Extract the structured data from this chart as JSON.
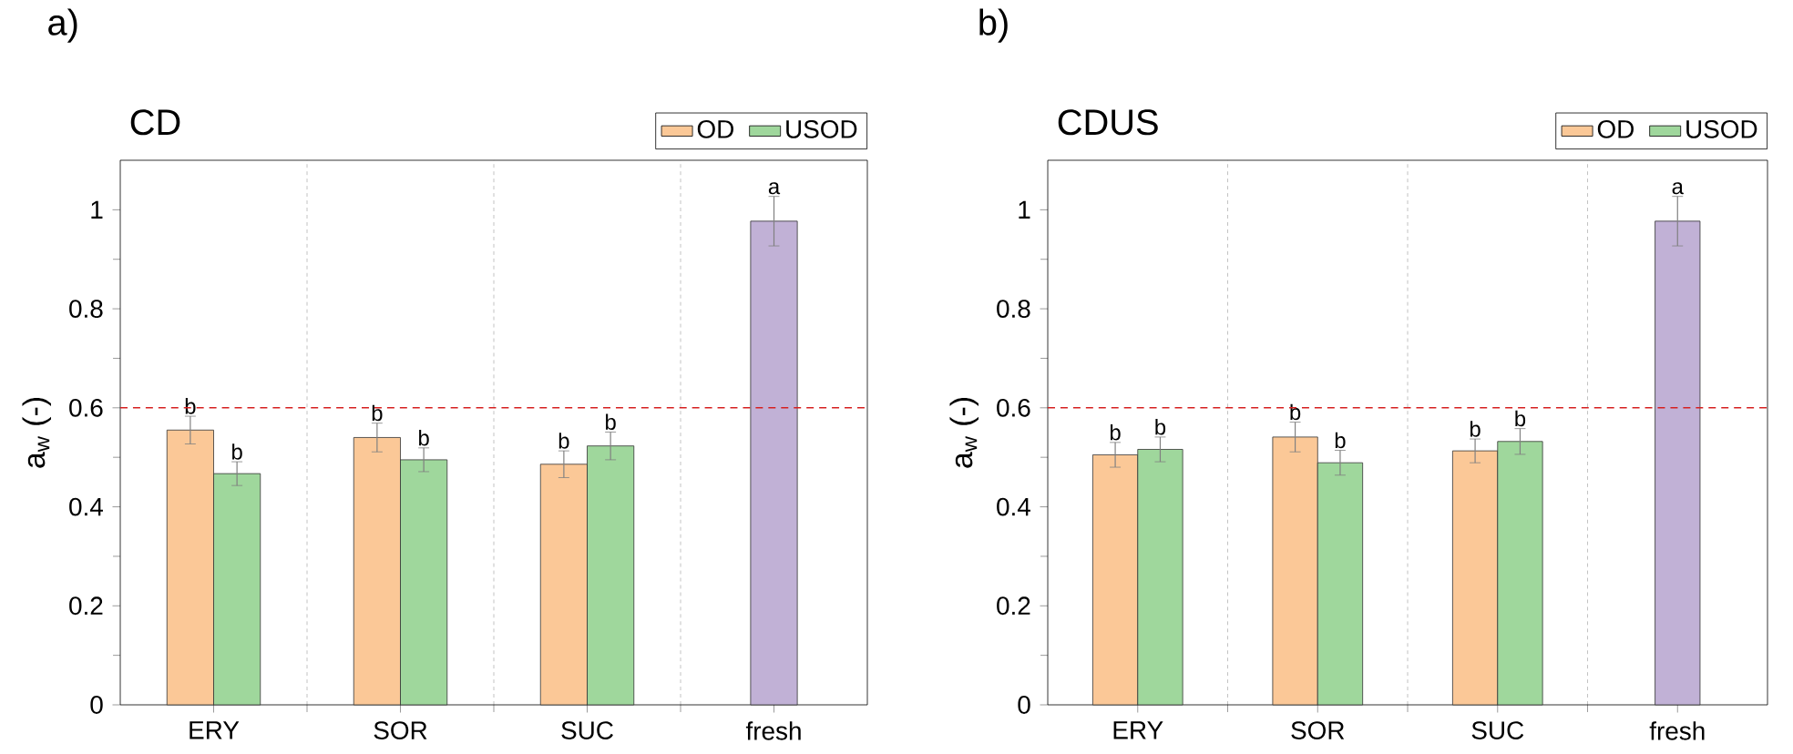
{
  "chart_data": [
    {
      "type": "bar",
      "title": "CD",
      "categories": [
        "ERY",
        "SOR",
        "SUC",
        "fresh"
      ],
      "ylabel": "a$_{w}$ (-)",
      "ylim": [
        0,
        1.1
      ],
      "yticks": [
        0,
        0.2,
        0.4,
        0.6,
        0.8,
        1
      ],
      "grid": "x",
      "legend": "top right",
      "ref_lines": [
        {
          "axis": "y",
          "value": 0.6,
          "color": "#d62020",
          "line_style": "dashed"
        }
      ],
      "annotations": [
        "a)"
      ],
      "series": [
        {
          "name": "OD",
          "color": "#fbc897",
          "values": [
            0.555,
            0.54,
            0.486,
            null
          ],
          "errors": [
            0.028,
            0.029,
            0.027,
            null
          ],
          "value_labels": [
            "b",
            "b",
            "b",
            null
          ]
        },
        {
          "name": "USOD",
          "color": "#9fd79c",
          "values": [
            0.467,
            0.495,
            0.523,
            null
          ],
          "errors": [
            0.024,
            0.024,
            0.028,
            null
          ],
          "value_labels": [
            "b",
            "b",
            "b",
            null
          ]
        },
        {
          "color": "#c1b1d6",
          "values": [
            null,
            null,
            null,
            0.977
          ],
          "errors": [
            null,
            null,
            null,
            0.05
          ],
          "value_labels": [
            null,
            null,
            null,
            "a"
          ]
        }
      ]
    },
    {
      "type": "bar",
      "title": "CDUS",
      "categories": [
        "ERY",
        "SOR",
        "SUC",
        "fresh"
      ],
      "ylabel": "a$_{w}$ (-)",
      "ylim": [
        0,
        1.1
      ],
      "yticks": [
        0,
        0.2,
        0.4,
        0.6,
        0.8,
        1
      ],
      "grid": "x",
      "legend": "top right",
      "ref_lines": [
        {
          "axis": "y",
          "value": 0.6,
          "color": "#d62020",
          "line_style": "dashed"
        }
      ],
      "annotations": [
        "b)"
      ],
      "series": [
        {
          "name": "OD",
          "color": "#fbc897",
          "values": [
            0.505,
            0.541,
            0.513,
            null
          ],
          "errors": [
            0.025,
            0.03,
            0.024,
            null
          ],
          "value_labels": [
            "b",
            "b",
            "b",
            null
          ]
        },
        {
          "name": "USOD",
          "color": "#9fd79c",
          "values": [
            0.516,
            0.489,
            0.532,
            null
          ],
          "errors": [
            0.025,
            0.025,
            0.026,
            null
          ],
          "value_labels": [
            "b",
            "b",
            "b",
            null
          ]
        },
        {
          "color": "#c1b1d6",
          "values": [
            null,
            null,
            null,
            0.977
          ],
          "errors": [
            null,
            null,
            null,
            0.05
          ],
          "value_labels": [
            null,
            null,
            null,
            "a"
          ]
        }
      ]
    }
  ]
}
